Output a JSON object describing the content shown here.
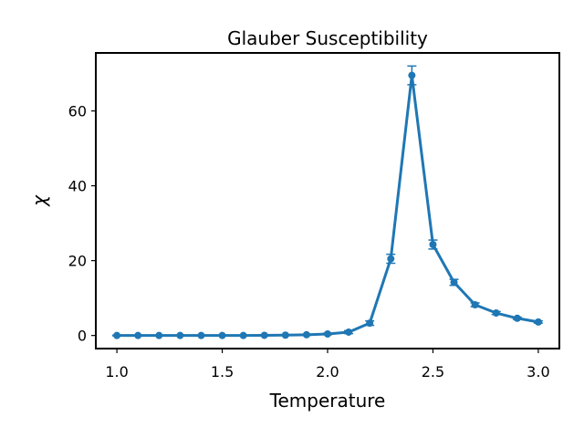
{
  "chart_data": {
    "type": "line",
    "title": "Glauber Susceptibility",
    "xlabel": "Temperature",
    "ylabel": "χ",
    "xlim": [
      0.9,
      3.1
    ],
    "ylim": [
      -3.5,
      75.5
    ],
    "xticks": [
      1.0,
      1.5,
      2.0,
      2.5,
      3.0
    ],
    "xtick_labels": [
      "1.0",
      "1.5",
      "2.0",
      "2.5",
      "3.0"
    ],
    "yticks": [
      0,
      20,
      40,
      60
    ],
    "ytick_labels": [
      "0",
      "20",
      "40",
      "60"
    ],
    "grid": false,
    "legend": "none",
    "color": "#1f77b4",
    "series": [
      {
        "x": [
          1.0,
          1.1,
          1.2,
          1.3,
          1.4,
          1.5,
          1.6,
          1.7,
          1.8,
          1.9,
          2.0,
          2.1,
          2.2,
          2.3,
          2.4,
          2.5,
          2.6,
          2.7,
          2.8,
          2.9,
          3.0
        ],
        "y": [
          0.0,
          0.0,
          0.0,
          0.0,
          0.0,
          0.0,
          0.0,
          0.05,
          0.1,
          0.2,
          0.4,
          0.9,
          3.3,
          20.5,
          69.5,
          24.3,
          14.2,
          8.2,
          6.0,
          4.6,
          3.6
        ],
        "yerr": [
          0.1,
          0.1,
          0.1,
          0.1,
          0.1,
          0.1,
          0.1,
          0.1,
          0.1,
          0.15,
          0.2,
          0.4,
          0.6,
          1.2,
          2.5,
          1.2,
          0.8,
          0.5,
          0.4,
          0.3,
          0.3
        ]
      }
    ]
  }
}
